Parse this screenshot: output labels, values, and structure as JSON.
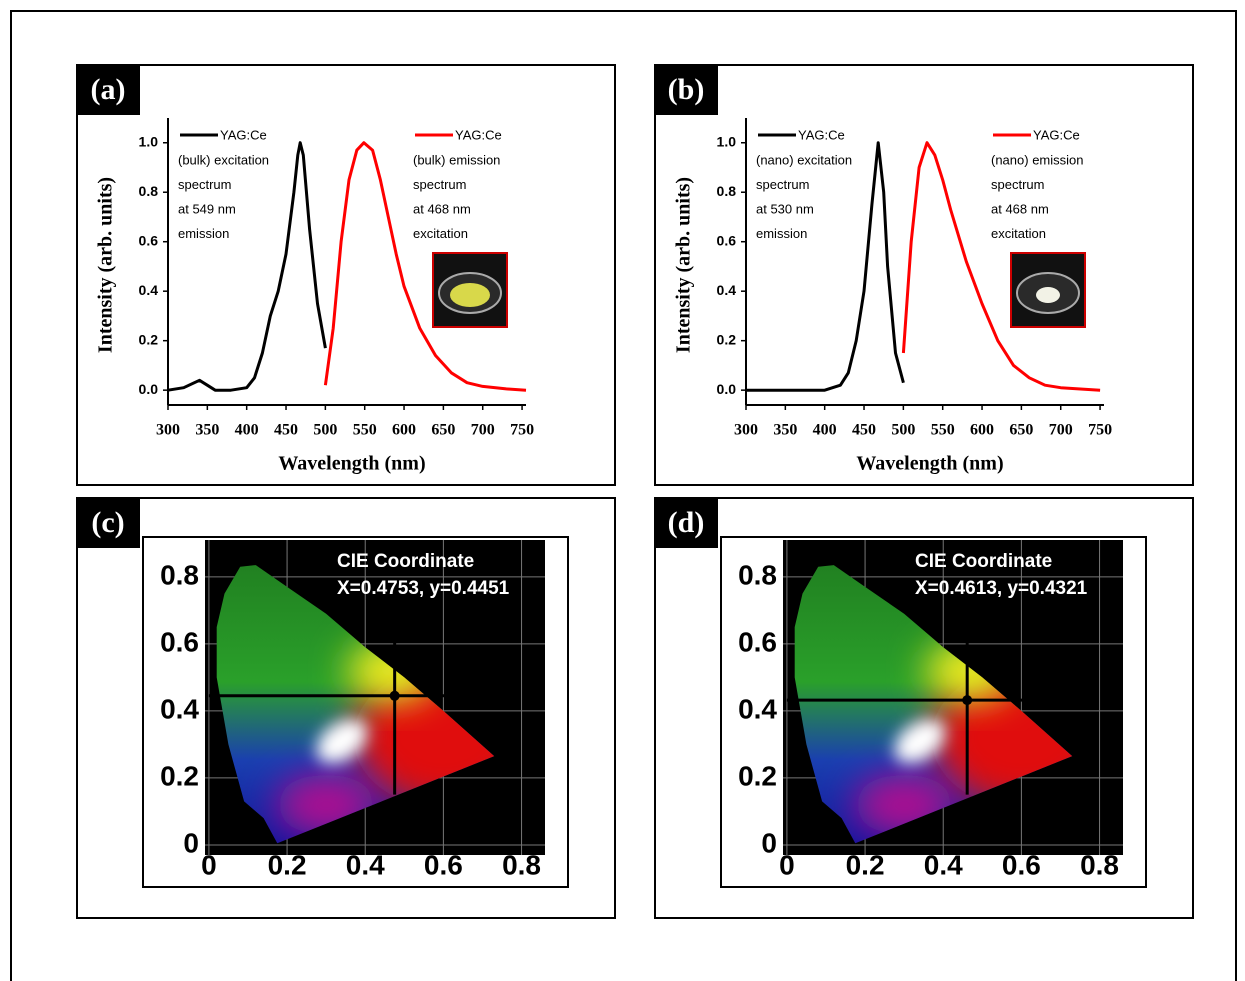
{
  "chart_data": [
    {
      "type": "line",
      "panel": "(a)",
      "xlabel": "Wavelength (nm)",
      "ylabel": "Intensity (arb. units)",
      "xlim": [
        300,
        755
      ],
      "ylim": [
        -0.06,
        1.1
      ],
      "xticks": [
        300,
        350,
        400,
        450,
        500,
        550,
        600,
        650,
        700,
        750
      ],
      "yticks": [
        {
          "value": 0,
          "label": "0.0"
        },
        0.2,
        0.4,
        0.6,
        0.8,
        {
          "value": 1,
          "label": "1.0"
        }
      ],
      "series": [
        {
          "name": "YAG:Ce",
          "color": "#000000",
          "legend_text": [
            "(bulk) excitation",
            "spectrum",
            "at 549 nm",
            "emission"
          ],
          "x": [
            300,
            320,
            340,
            350,
            360,
            380,
            400,
            410,
            420,
            430,
            440,
            450,
            460,
            465,
            468,
            472,
            480,
            490,
            500
          ],
          "values": [
            0.0,
            0.01,
            0.04,
            0.02,
            0.0,
            0.0,
            0.01,
            0.05,
            0.15,
            0.3,
            0.4,
            0.55,
            0.8,
            0.95,
            1.0,
            0.95,
            0.65,
            0.35,
            0.17
          ]
        },
        {
          "name": "YAG:Ce",
          "color": "#ff0000",
          "legend_text": [
            "(bulk) emission",
            "spectrum",
            "at 468 nm",
            "excitation"
          ],
          "x": [
            500,
            510,
            520,
            530,
            540,
            549,
            560,
            570,
            580,
            590,
            600,
            620,
            640,
            660,
            680,
            700,
            730,
            755
          ],
          "values": [
            0.02,
            0.25,
            0.6,
            0.85,
            0.97,
            1.0,
            0.97,
            0.85,
            0.7,
            0.55,
            0.42,
            0.25,
            0.14,
            0.07,
            0.03,
            0.015,
            0.005,
            0.0
          ]
        }
      ]
    },
    {
      "type": "line",
      "panel": "(b)",
      "xlabel": "Wavelength (nm)",
      "ylabel": "Intensity (arb. units)",
      "xlim": [
        300,
        755
      ],
      "ylim": [
        -0.06,
        1.1
      ],
      "xticks": [
        300,
        350,
        400,
        450,
        500,
        550,
        600,
        650,
        700,
        750
      ],
      "yticks": [
        {
          "value": 0,
          "label": "0.0"
        },
        0.2,
        0.4,
        0.6,
        0.8,
        {
          "value": 1,
          "label": "1.0"
        }
      ],
      "series": [
        {
          "name": "YAG:Ce",
          "color": "#000000",
          "legend_text": [
            "(nano) excitation",
            "spectrum",
            "at 530 nm",
            "emission"
          ],
          "x": [
            300,
            350,
            400,
            420,
            430,
            440,
            450,
            460,
            468,
            475,
            480,
            490,
            500
          ],
          "values": [
            0.0,
            0.0,
            0.0,
            0.02,
            0.07,
            0.2,
            0.4,
            0.75,
            1.0,
            0.8,
            0.5,
            0.15,
            0.03
          ]
        },
        {
          "name": "YAG:Ce",
          "color": "#ff0000",
          "legend_text": [
            "(nano) emission",
            "spectrum",
            "at 468 nm",
            "excitation"
          ],
          "x": [
            500,
            510,
            520,
            530,
            540,
            550,
            560,
            580,
            600,
            620,
            640,
            660,
            680,
            700,
            750
          ],
          "values": [
            0.15,
            0.6,
            0.9,
            1.0,
            0.95,
            0.85,
            0.73,
            0.52,
            0.35,
            0.2,
            0.1,
            0.05,
            0.02,
            0.01,
            0.0
          ]
        }
      ]
    },
    {
      "type": "scatter",
      "panel": "(c)",
      "title": "CIE Coordinate",
      "subtitle": "X=0.4753, y=0.4451",
      "xlim": [
        -0.01,
        0.86
      ],
      "ylim": [
        -0.03,
        0.91
      ],
      "xticks": [
        0,
        0.2,
        0.4,
        0.6,
        0.8
      ],
      "yticks": [
        0,
        0.2,
        0.4,
        0.6,
        0.8
      ],
      "grid": true,
      "x": [
        0.4753
      ],
      "values": [
        0.4451
      ]
    },
    {
      "type": "scatter",
      "panel": "(d)",
      "title": "CIE Coordinate",
      "subtitle": "X=0.4613, y=0.4321",
      "xlim": [
        -0.01,
        0.86
      ],
      "ylim": [
        -0.03,
        0.91
      ],
      "xticks": [
        0,
        0.2,
        0.4,
        0.6,
        0.8
      ],
      "yticks": [
        0,
        0.2,
        0.4,
        0.6,
        0.8
      ],
      "grid": true,
      "x": [
        0.4613
      ],
      "values": [
        0.4321
      ]
    }
  ]
}
